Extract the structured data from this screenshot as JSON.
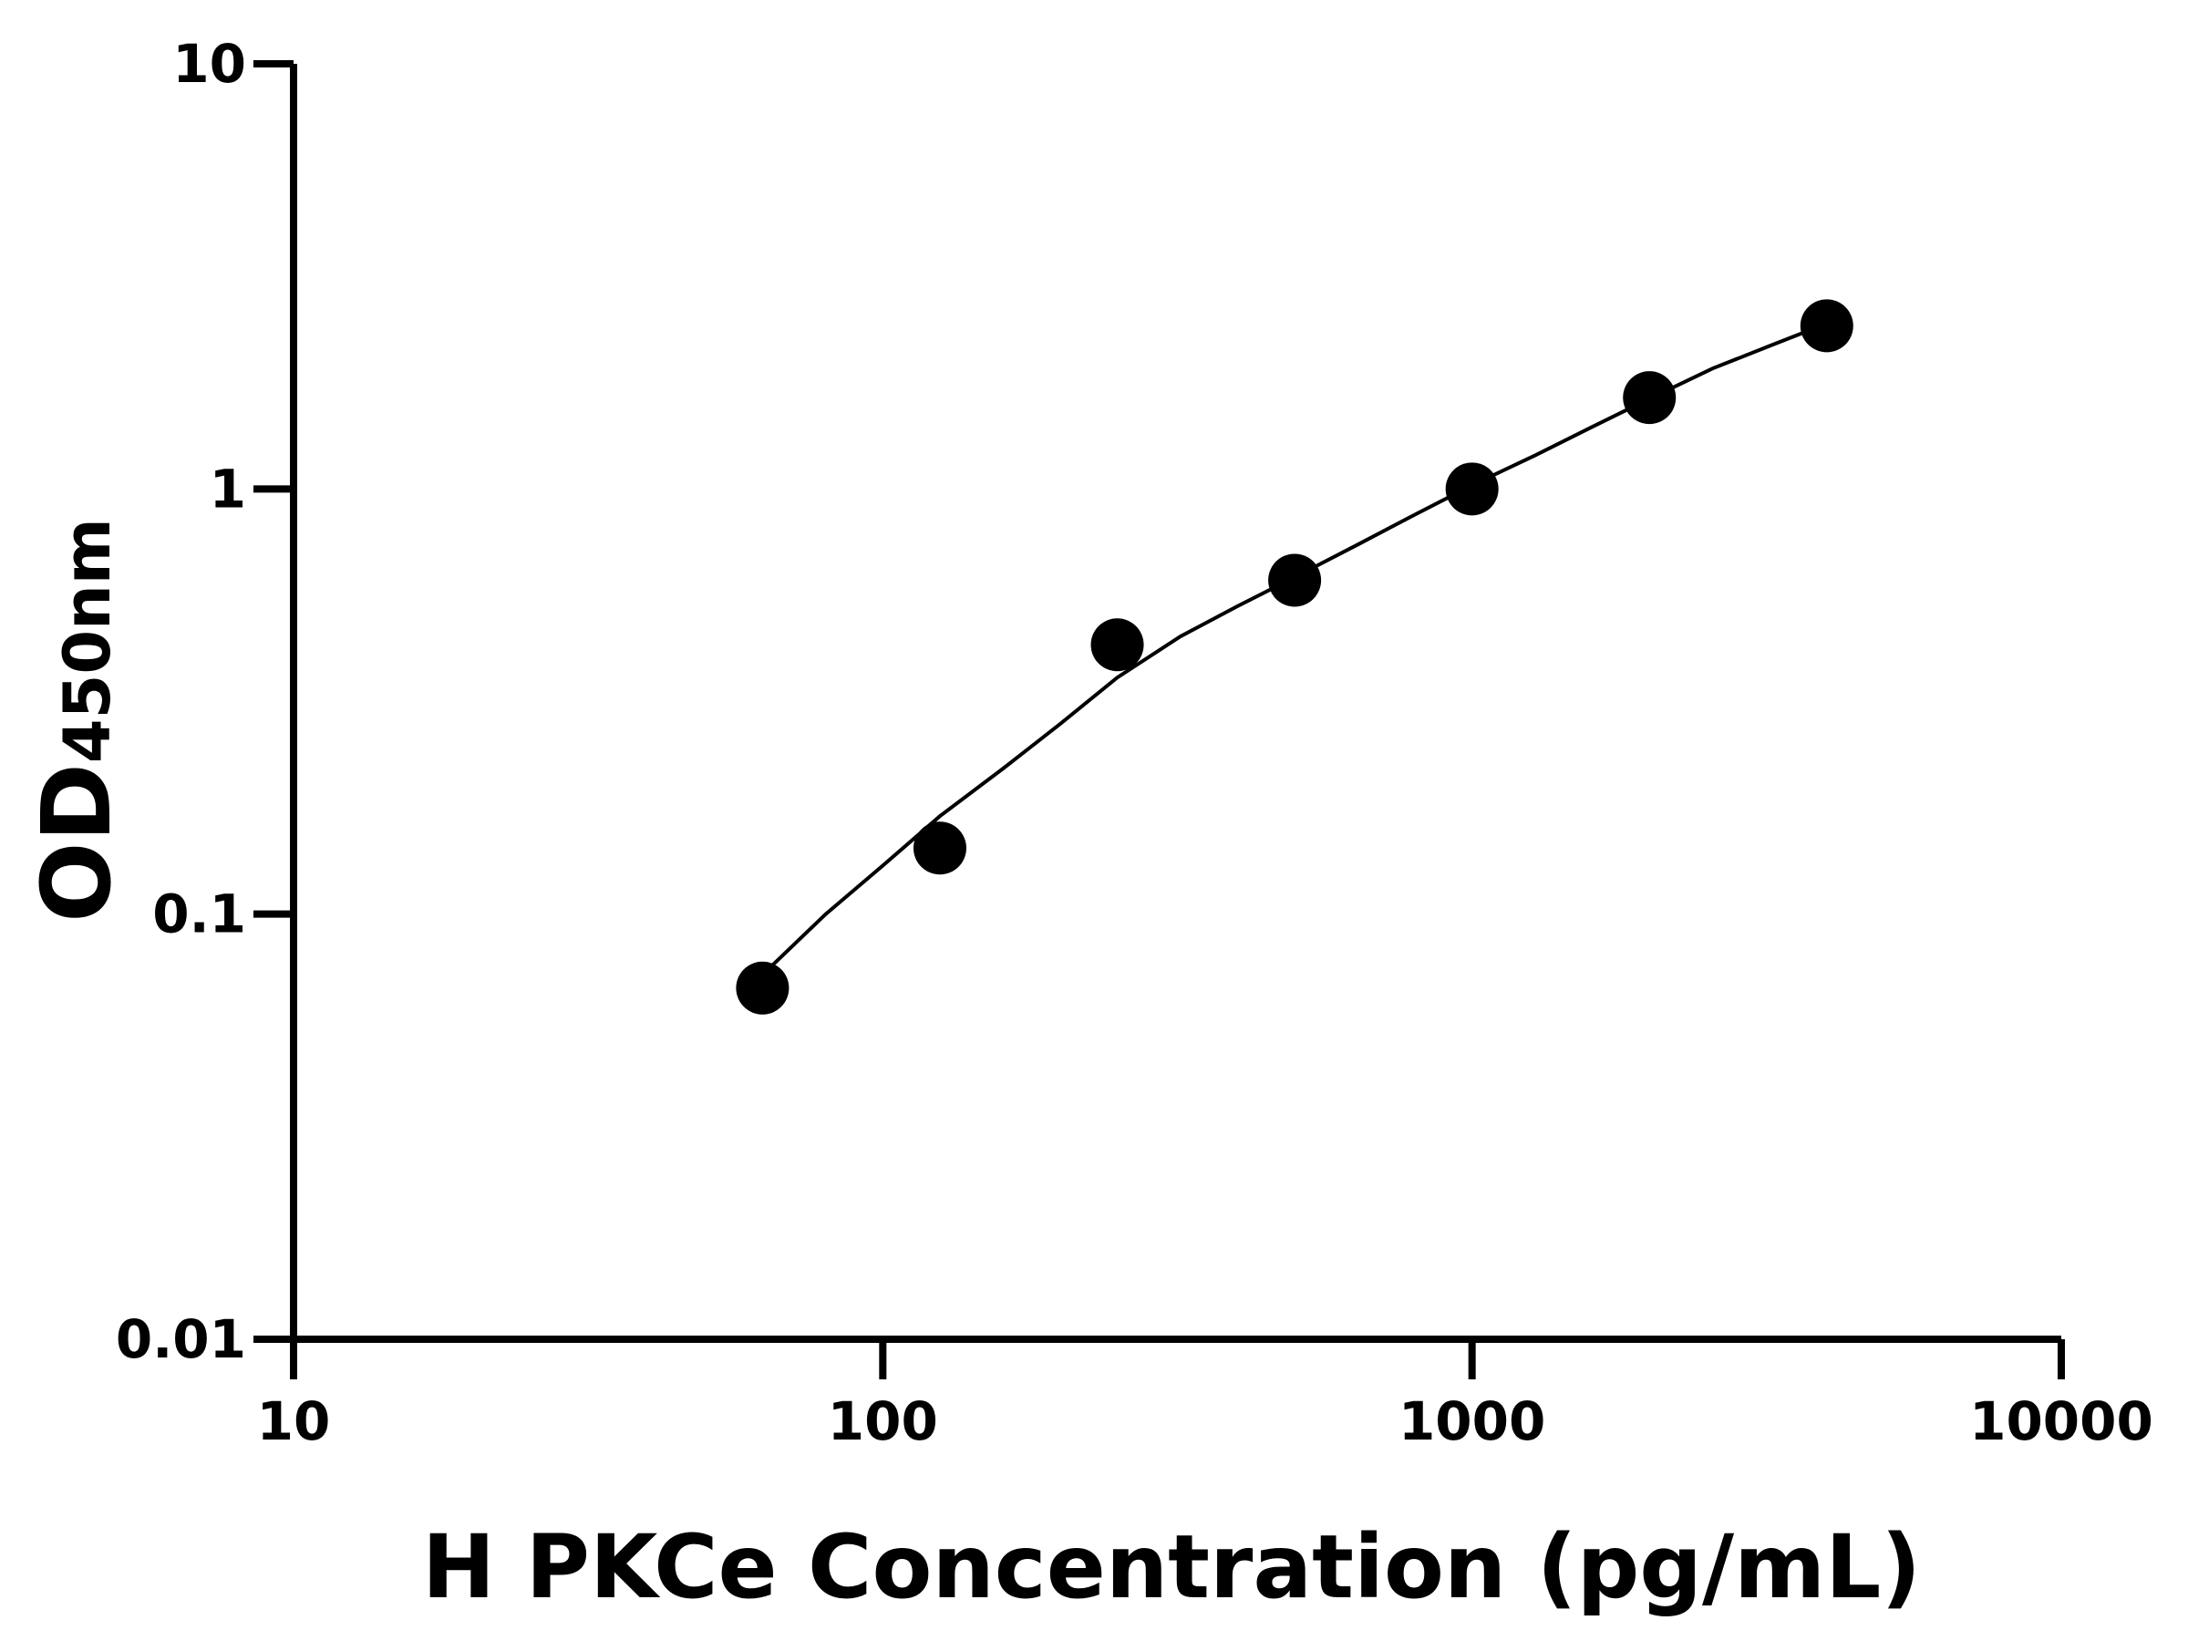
{
  "chart_data": {
    "type": "scatter",
    "title": "",
    "xlabel": "H PKCe Concentration (pg/mL)",
    "ylabel_main": "OD",
    "ylabel_sub": "450nm",
    "xscale": "log",
    "yscale": "log",
    "xlim": [
      10,
      10000
    ],
    "ylim": [
      0.01,
      10
    ],
    "xticks": [
      "10",
      "100",
      "1000",
      "10000"
    ],
    "yticks": [
      "0.01",
      "0.1",
      "1",
      "10"
    ],
    "grid": false,
    "legend": "none",
    "series": [
      {
        "x": [
          62.5,
          125,
          250,
          500,
          1000,
          2000,
          4000
        ],
        "y": [
          0.067,
          0.143,
          0.43,
          0.61,
          1.0,
          1.64,
          2.42
        ],
        "marker": "filled-circle",
        "color": "#000000"
      }
    ],
    "fit_curve": {
      "x": [
        62.5,
        80,
        100,
        125,
        160,
        200,
        250,
        320,
        400,
        500,
        640,
        800,
        1000,
        1280,
        1600,
        2000,
        2560,
        3200,
        4000
      ],
      "y": [
        0.072,
        0.1,
        0.13,
        0.17,
        0.22,
        0.28,
        0.36,
        0.45,
        0.53,
        0.62,
        0.74,
        0.87,
        1.02,
        1.2,
        1.4,
        1.63,
        1.92,
        2.17,
        2.45
      ],
      "color": "#000000"
    }
  }
}
